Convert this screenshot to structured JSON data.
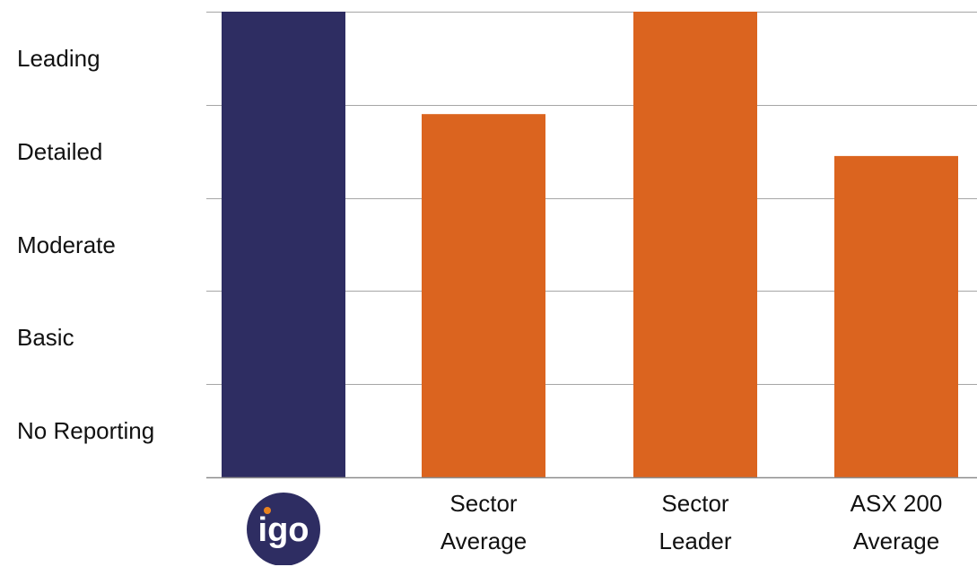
{
  "chart_data": {
    "type": "bar",
    "categories": [
      "igo",
      "Sector Average",
      "Sector Leader",
      "ASX 200 Average"
    ],
    "category_lines": [
      [],
      [
        "Sector",
        "Average"
      ],
      [
        "Sector",
        "Leader"
      ],
      [
        "ASX 200",
        "Average"
      ]
    ],
    "values": [
      5.0,
      3.9,
      5.0,
      3.45
    ],
    "ylim": [
      0,
      5
    ],
    "y_levels": [
      "No Reporting",
      "Basic",
      "Moderate",
      "Detailed",
      "Leading"
    ],
    "grid": true,
    "colors": {
      "igo": "#2e2d62",
      "others": "#db641f",
      "grid": "#a6a6a6",
      "logo_text": "#ffffff",
      "logo_accent": "#e8821e"
    }
  },
  "logo": {
    "text": "igo"
  }
}
